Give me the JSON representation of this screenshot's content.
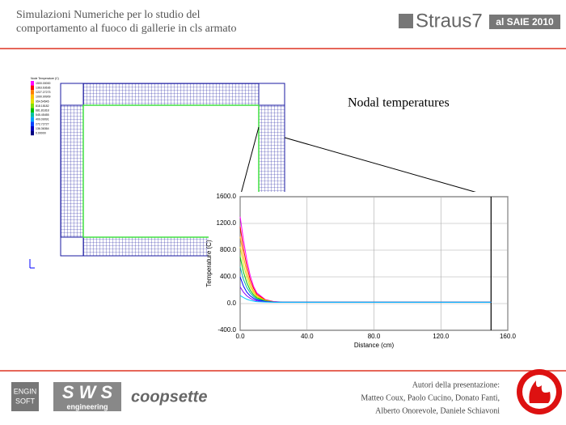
{
  "header": {
    "title_lines": [
      "Simulazioni Numeriche per lo studio del",
      "comportamento al fuoco di gallerie in cls armato"
    ],
    "logo": "Straus7",
    "badge": "al SAIE 2010"
  },
  "contour_legend": {
    "title": "Node Temperature (C)",
    "labels": [
      "1500.00000",
      "1363.63636",
      "1227.27273",
      "1090.90909",
      "954.54545",
      "818.18182",
      "681.81818",
      "545.45455",
      "409.09091",
      "272.72727",
      "136.36364",
      "0.00000"
    ]
  },
  "caption": "Nodal temperatures",
  "chart_data": {
    "type": "line",
    "xlabel": "Distance (cm)",
    "ylabel": "Temperature (C)",
    "x": [
      0,
      2,
      4,
      6,
      8,
      10,
      15,
      20,
      25,
      30,
      40,
      60,
      80,
      100,
      120,
      150
    ],
    "xlim": [
      0,
      160
    ],
    "xticks": [
      {
        "value": 0,
        "label": "0.0"
      },
      {
        "value": 40,
        "label": "40.0"
      },
      {
        "value": 80,
        "label": "80.0"
      },
      {
        "value": 120,
        "label": "120.0"
      },
      {
        "value": 160,
        "label": "160.0"
      }
    ],
    "ylim": [
      -400,
      1600
    ],
    "yticks": [
      {
        "value": -400,
        "label": "-400.0"
      },
      {
        "value": 0,
        "label": "0.0"
      },
      {
        "value": 400,
        "label": "400.0"
      },
      {
        "value": 800,
        "label": "800.0"
      },
      {
        "value": 1200,
        "label": "1200.0"
      },
      {
        "value": 1600,
        "label": "1600.0"
      }
    ],
    "grid": true,
    "series": [
      {
        "color": "#ff00ff",
        "values": [
          1300,
          950,
          650,
          420,
          260,
          160,
          60,
          30,
          22,
          20,
          20,
          20,
          20,
          20,
          20,
          20
        ]
      },
      {
        "color": "#ff0000",
        "values": [
          1150,
          820,
          560,
          360,
          230,
          140,
          55,
          28,
          21,
          20,
          20,
          20,
          20,
          20,
          20,
          20
        ]
      },
      {
        "color": "#ffa500",
        "values": [
          1000,
          700,
          470,
          300,
          190,
          120,
          50,
          26,
          21,
          20,
          20,
          20,
          20,
          20,
          20,
          20
        ]
      },
      {
        "color": "#e0e000",
        "values": [
          850,
          580,
          390,
          250,
          160,
          100,
          45,
          25,
          20,
          20,
          20,
          20,
          20,
          20,
          20,
          20
        ]
      },
      {
        "color": "#00c000",
        "values": [
          700,
          470,
          310,
          200,
          130,
          85,
          40,
          24,
          20,
          20,
          20,
          20,
          20,
          20,
          20,
          20
        ]
      },
      {
        "color": "#00b0b0",
        "values": [
          550,
          360,
          240,
          160,
          105,
          70,
          35,
          23,
          20,
          20,
          20,
          20,
          20,
          20,
          20,
          20
        ]
      },
      {
        "color": "#0000ff",
        "values": [
          400,
          260,
          170,
          115,
          80,
          55,
          30,
          22,
          20,
          20,
          20,
          20,
          20,
          20,
          20,
          20
        ]
      },
      {
        "color": "#8000ff",
        "values": [
          250,
          170,
          115,
          80,
          55,
          40,
          26,
          21,
          20,
          20,
          20,
          20,
          20,
          20,
          20,
          20
        ]
      },
      {
        "color": "#00c8ff",
        "values": [
          120,
          90,
          65,
          48,
          36,
          29,
          23,
          20,
          20,
          20,
          20,
          20,
          20,
          20,
          20,
          20
        ]
      }
    ]
  },
  "footer": {
    "logo1": [
      "ENGIN",
      "SOFT"
    ],
    "logo2": "S W S",
    "logo2_sub": "engineering",
    "logo3": "coopsette",
    "authors": [
      "Autori della presentazione:",
      "Matteo Coux, Paolo Cucino, Donato Fanti,",
      "Alberto Onorevole, Daniele Schiavoni"
    ]
  }
}
